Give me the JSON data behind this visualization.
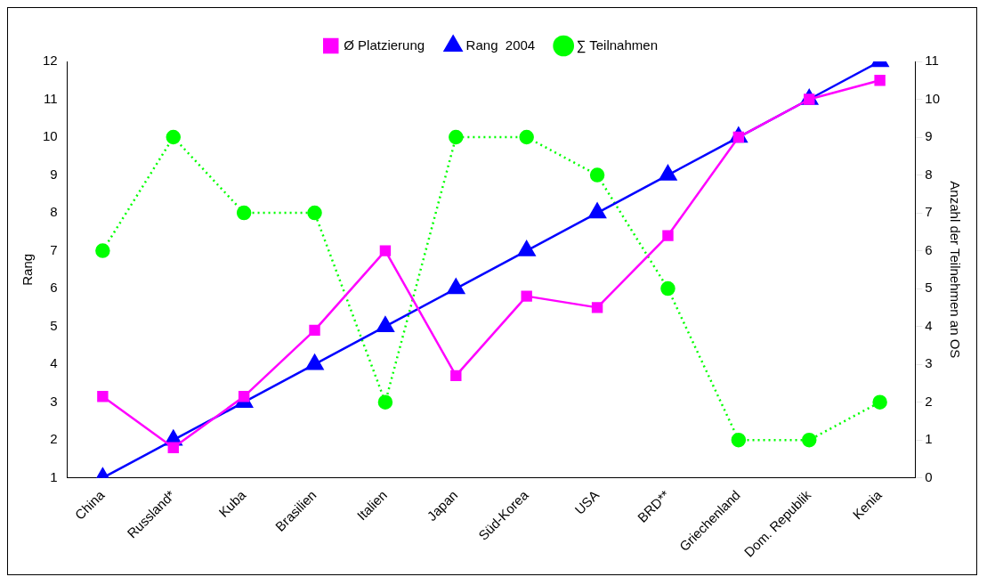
{
  "chart_data": {
    "type": "line",
    "categories": [
      "China",
      "Russland*",
      "Kuba",
      "Brasilien",
      "Italien",
      "Japan",
      "Süd-Korea",
      "USA",
      "BRD**",
      "Griechenland",
      "Dom. Republik",
      "Kenia"
    ],
    "series": [
      {
        "name": "Ø Platzierung",
        "color": "#ff00ff",
        "marker": "square",
        "line_style": "solid",
        "values": [
          3.15,
          1.8,
          3.15,
          4.9,
          7,
          3.7,
          5.8,
          5.5,
          7.4,
          10,
          11,
          11.5
        ]
      },
      {
        "name": "Rang  2004",
        "color": "#0000ff",
        "marker": "triangle",
        "line_style": "solid",
        "values": [
          1,
          2,
          3,
          4,
          5,
          6,
          7,
          8,
          9,
          10,
          11,
          12
        ]
      },
      {
        "name": "∑ Teilnahmen",
        "color": "#00ff00",
        "marker": "circle",
        "line_style": "dotted",
        "axis": "y2",
        "values": [
          6,
          9,
          7,
          7,
          2,
          9,
          9,
          8,
          5,
          1,
          1,
          2
        ]
      }
    ],
    "ylabel": "Rang",
    "y2label": "Anzahl der Teilnehmen an OS",
    "ylim": [
      1,
      12
    ],
    "yticks": [
      1,
      2,
      3,
      4,
      5,
      6,
      7,
      8,
      9,
      10,
      11,
      12
    ],
    "y2lim": [
      0,
      11
    ],
    "y2ticks": [
      0,
      1,
      2,
      3,
      4,
      5,
      6,
      7,
      8,
      9,
      10,
      11
    ],
    "grid": false,
    "legend": "top"
  }
}
